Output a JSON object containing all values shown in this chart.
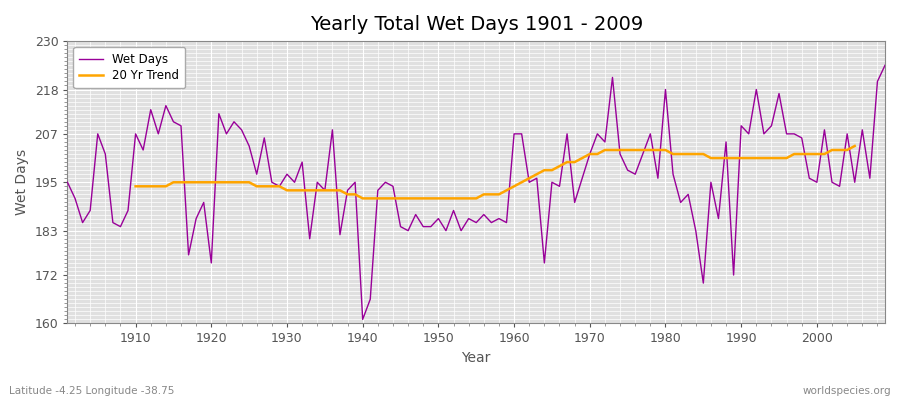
{
  "title": "Yearly Total Wet Days 1901 - 2009",
  "xlabel": "Year",
  "ylabel": "Wet Days",
  "bottom_left_label": "Latitude -4.25 Longitude -38.75",
  "bottom_right_label": "worldspecies.org",
  "ylim": [
    160,
    230
  ],
  "yticks": [
    160,
    172,
    183,
    195,
    207,
    218,
    230
  ],
  "line_color": "#990099",
  "trend_color": "#FFA500",
  "background_color": "#e0e0e0",
  "fig_background_color": "#ffffff",
  "grid_color": "#ffffff",
  "years": [
    1901,
    1902,
    1903,
    1904,
    1905,
    1906,
    1907,
    1908,
    1909,
    1910,
    1911,
    1912,
    1913,
    1914,
    1915,
    1916,
    1917,
    1918,
    1919,
    1920,
    1921,
    1922,
    1923,
    1924,
    1925,
    1926,
    1927,
    1928,
    1929,
    1930,
    1931,
    1932,
    1933,
    1934,
    1935,
    1936,
    1937,
    1938,
    1939,
    1940,
    1941,
    1942,
    1943,
    1944,
    1945,
    1946,
    1947,
    1948,
    1949,
    1950,
    1951,
    1952,
    1953,
    1954,
    1955,
    1956,
    1957,
    1958,
    1959,
    1960,
    1961,
    1962,
    1963,
    1964,
    1965,
    1966,
    1967,
    1968,
    1969,
    1970,
    1971,
    1972,
    1973,
    1974,
    1975,
    1976,
    1977,
    1978,
    1979,
    1980,
    1981,
    1982,
    1983,
    1984,
    1985,
    1986,
    1987,
    1988,
    1989,
    1990,
    1991,
    1992,
    1993,
    1994,
    1995,
    1996,
    1997,
    1998,
    1999,
    2000,
    2001,
    2002,
    2003,
    2004,
    2005,
    2006,
    2007,
    2008,
    2009
  ],
  "wet_days": [
    195,
    191,
    185,
    188,
    207,
    202,
    185,
    184,
    188,
    207,
    203,
    213,
    207,
    214,
    210,
    209,
    177,
    186,
    190,
    175,
    212,
    207,
    210,
    208,
    204,
    197,
    206,
    195,
    194,
    197,
    195,
    200,
    181,
    195,
    193,
    208,
    182,
    193,
    195,
    161,
    166,
    193,
    195,
    194,
    184,
    183,
    187,
    184,
    184,
    186,
    183,
    188,
    183,
    186,
    185,
    187,
    185,
    186,
    185,
    207,
    207,
    195,
    196,
    175,
    195,
    194,
    207,
    190,
    196,
    202,
    207,
    205,
    221,
    202,
    198,
    197,
    202,
    207,
    196,
    218,
    197,
    190,
    192,
    183,
    170,
    195,
    186,
    205,
    172,
    209,
    207,
    218,
    207,
    209,
    217,
    207,
    207,
    206,
    196,
    195,
    208,
    195,
    194,
    207,
    195,
    208,
    196,
    220,
    224
  ],
  "trend_years": [
    1910,
    1911,
    1912,
    1913,
    1914,
    1915,
    1916,
    1917,
    1918,
    1919,
    1920,
    1921,
    1922,
    1923,
    1924,
    1925,
    1926,
    1927,
    1928,
    1929,
    1930,
    1931,
    1932,
    1933,
    1934,
    1935,
    1936,
    1937,
    1938,
    1939,
    1940,
    1941,
    1942,
    1943,
    1944,
    1945,
    1946,
    1947,
    1948,
    1949,
    1950,
    1951,
    1952,
    1953,
    1954,
    1955,
    1956,
    1957,
    1958,
    1959,
    1960,
    1961,
    1962,
    1963,
    1964,
    1965,
    1966,
    1967,
    1968,
    1969,
    1970,
    1971,
    1972,
    1973,
    1974,
    1975,
    1976,
    1977,
    1978,
    1979,
    1980,
    1981,
    1982,
    1983,
    1984,
    1985,
    1986,
    1987,
    1988,
    1989,
    1990,
    1991,
    1992,
    1993,
    1994,
    1995,
    1996,
    1997,
    1998,
    1999,
    2000,
    2001,
    2002,
    2003,
    2004,
    2005
  ],
  "trend_values": [
    194,
    194,
    194,
    194,
    194,
    195,
    195,
    195,
    195,
    195,
    195,
    195,
    195,
    195,
    195,
    195,
    194,
    194,
    194,
    194,
    193,
    193,
    193,
    193,
    193,
    193,
    193,
    193,
    192,
    192,
    191,
    191,
    191,
    191,
    191,
    191,
    191,
    191,
    191,
    191,
    191,
    191,
    191,
    191,
    191,
    191,
    192,
    192,
    192,
    193,
    194,
    195,
    196,
    197,
    198,
    198,
    199,
    200,
    200,
    201,
    202,
    202,
    203,
    203,
    203,
    203,
    203,
    203,
    203,
    203,
    203,
    202,
    202,
    202,
    202,
    202,
    201,
    201,
    201,
    201,
    201,
    201,
    201,
    201,
    201,
    201,
    201,
    202,
    202,
    202,
    202,
    202,
    203,
    203,
    203,
    204
  ],
  "xticks": [
    1910,
    1920,
    1930,
    1940,
    1950,
    1960,
    1970,
    1980,
    1990,
    2000
  ]
}
